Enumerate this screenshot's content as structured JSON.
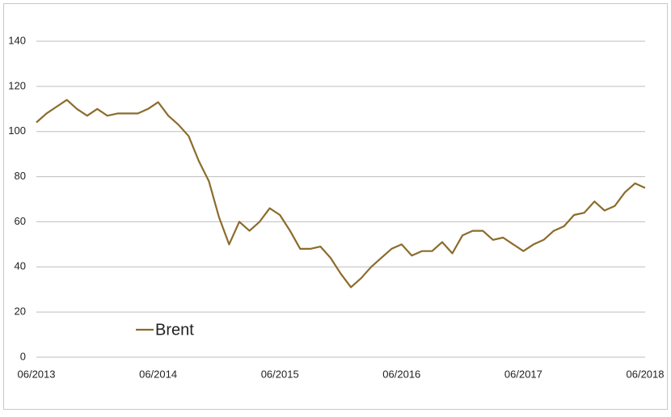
{
  "chart_data": {
    "type": "line",
    "categories": [
      "06/2013",
      null,
      null,
      null,
      null,
      null,
      null,
      null,
      null,
      null,
      null,
      null,
      "06/2014",
      null,
      null,
      null,
      null,
      null,
      null,
      null,
      null,
      null,
      null,
      null,
      "06/2015",
      null,
      null,
      null,
      null,
      null,
      null,
      null,
      null,
      null,
      null,
      null,
      "06/2016",
      null,
      null,
      null,
      null,
      null,
      null,
      null,
      null,
      null,
      null,
      null,
      "06/2017",
      null,
      null,
      null,
      null,
      null,
      null,
      null,
      null,
      null,
      null,
      null,
      "06/2018"
    ],
    "series": [
      {
        "name": "Brent",
        "color": "#8b6c2b",
        "values": [
          104,
          108,
          111,
          114,
          110,
          107,
          110,
          107,
          108,
          108,
          108,
          110,
          113,
          107,
          103,
          98,
          87,
          78,
          62,
          50,
          60,
          56,
          60,
          66,
          63,
          56,
          48,
          48,
          49,
          44,
          37,
          31,
          35,
          40,
          44,
          48,
          50,
          45,
          47,
          47,
          51,
          46,
          54,
          56,
          56,
          52,
          53,
          50,
          47,
          50,
          52,
          56,
          58,
          63,
          64,
          69,
          65,
          67,
          73,
          77,
          75
        ]
      }
    ],
    "ylim": [
      0,
      140
    ],
    "yticks": [
      0,
      20,
      40,
      60,
      80,
      100,
      120,
      140
    ],
    "grid": true,
    "legend": "lower left"
  }
}
